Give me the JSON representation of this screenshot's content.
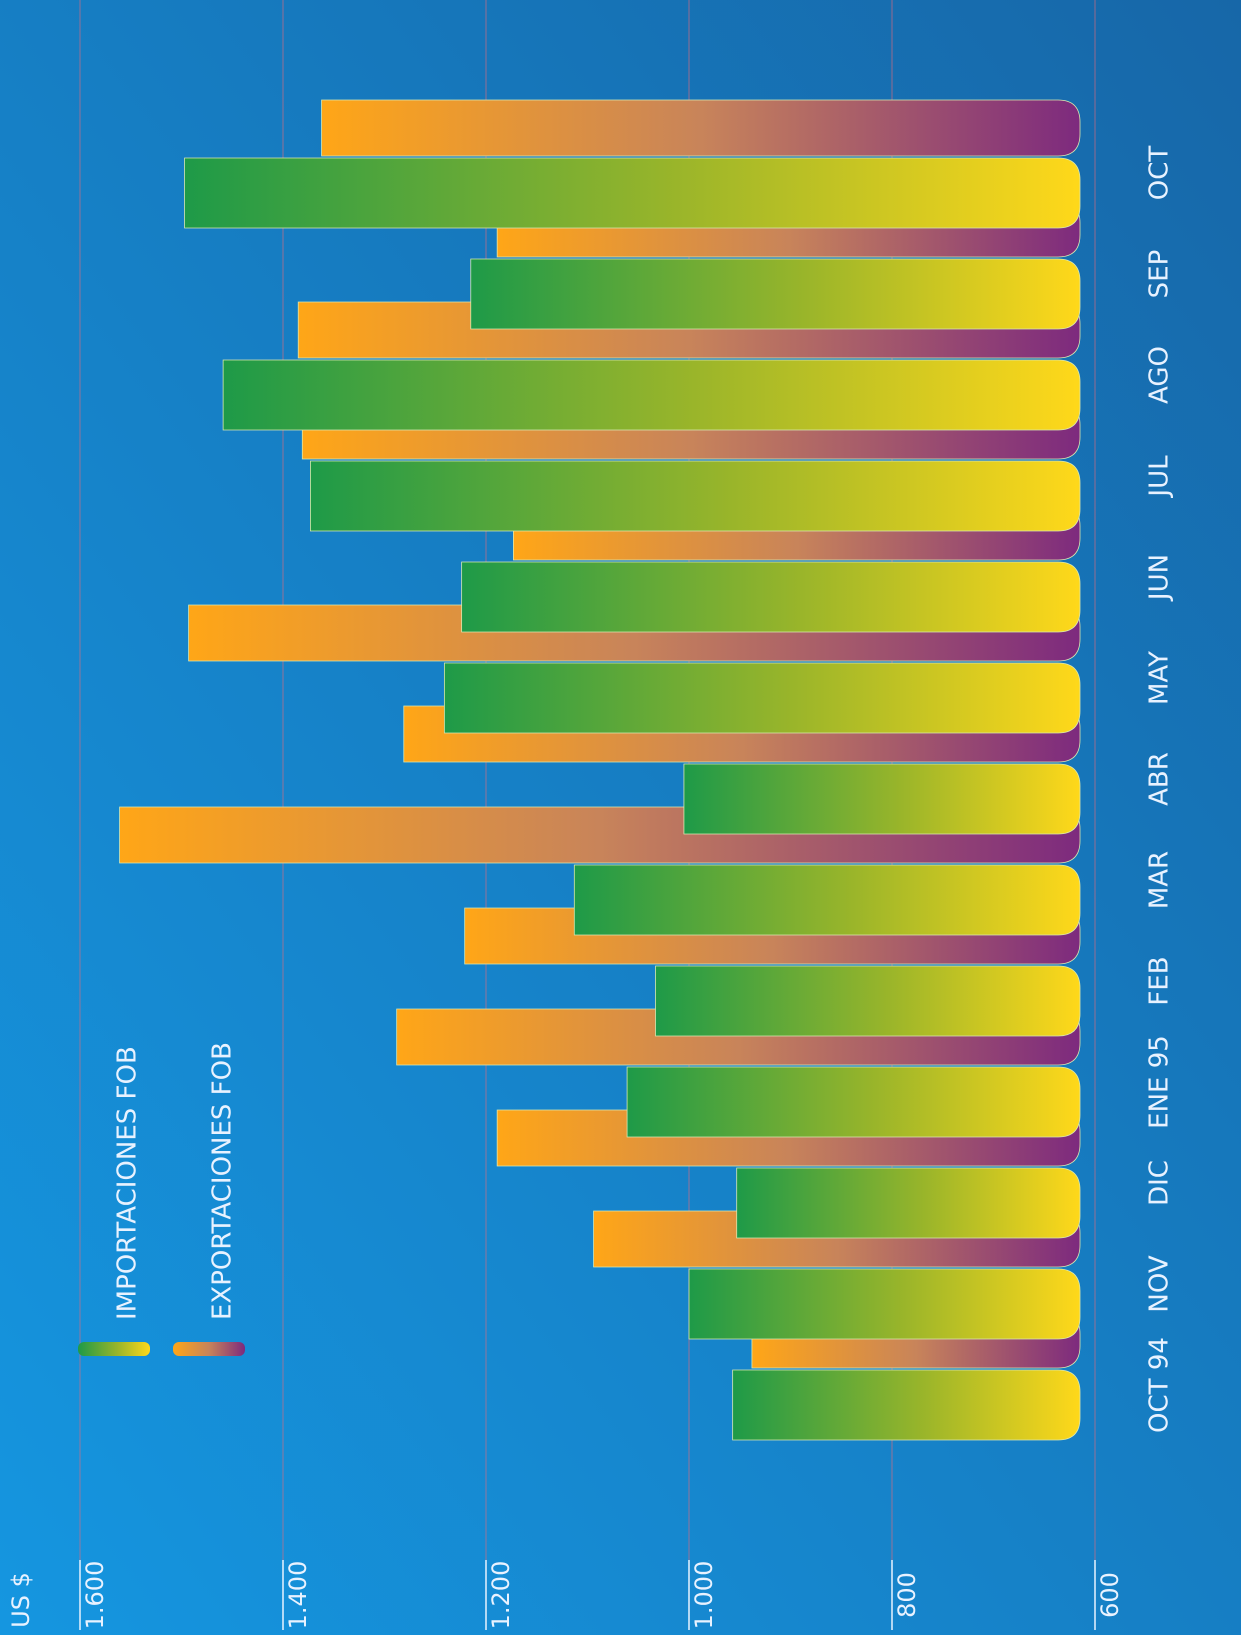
{
  "chart_data": {
    "type": "bar",
    "y_label": "US $",
    "categories": [
      "OCT 94",
      "NOV",
      "DIC",
      "ENE 95",
      "FEB",
      "MAR",
      "ABR",
      "MAY",
      "JUN",
      "JUL",
      "AGO",
      "SEP",
      "OCT"
    ],
    "series": [
      {
        "name": "IMPORTACIONES FOB",
        "color": "#1e9a48",
        "values": [
          957,
          1000,
          953,
          1061,
          1033,
          1113,
          1005,
          1241,
          1224,
          1373,
          1459,
          1215,
          1497
        ]
      },
      {
        "name": "EXPORTACIONES FOB",
        "color": "#ffa617",
        "values": [
          938,
          1094,
          1189,
          1288,
          1221,
          1561,
          1281,
          1493,
          1173,
          1381,
          1385,
          1189,
          1362
        ]
      }
    ],
    "ylim": [
      600,
      1600
    ],
    "yticks": [
      {
        "value": 600,
        "label": "600"
      },
      {
        "value": 800,
        "label": "800"
      },
      {
        "value": 1000,
        "label": "1.000"
      },
      {
        "value": 1200,
        "label": "1.200"
      },
      {
        "value": 1400,
        "label": "1.400"
      },
      {
        "value": 1600,
        "label": "1.600"
      }
    ],
    "grid": true
  }
}
